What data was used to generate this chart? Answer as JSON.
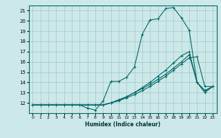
{
  "title": "",
  "xlabel": "Humidex (Indice chaleur)",
  "ylabel": "",
  "bg_color": "#cce8e8",
  "line_color": "#006666",
  "grid_color": "#aacccc",
  "xlim": [
    -0.5,
    23.5
  ],
  "ylim": [
    11.0,
    21.5
  ],
  "yticks": [
    12,
    13,
    14,
    15,
    16,
    17,
    18,
    19,
    20,
    21
  ],
  "xticks": [
    0,
    1,
    2,
    3,
    4,
    5,
    6,
    7,
    8,
    9,
    10,
    11,
    12,
    13,
    14,
    15,
    16,
    17,
    18,
    19,
    20,
    21,
    22,
    23
  ],
  "series": [
    {
      "x": [
        0,
        1,
        2,
        3,
        4,
        5,
        6,
        7,
        8,
        9,
        10,
        11,
        12,
        13,
        14,
        15,
        16,
        17,
        18,
        19,
        20,
        21,
        22,
        23
      ],
      "y": [
        11.8,
        11.8,
        11.8,
        11.8,
        11.8,
        11.8,
        11.8,
        11.5,
        11.3,
        12.2,
        14.1,
        14.1,
        14.5,
        15.5,
        18.7,
        20.1,
        20.2,
        21.2,
        21.3,
        20.3,
        19.1,
        14.0,
        13.0,
        13.6
      ]
    },
    {
      "x": [
        0,
        1,
        2,
        3,
        4,
        5,
        6,
        7,
        8,
        9,
        10,
        11,
        12,
        13,
        14,
        15,
        16,
        17,
        18,
        19,
        20,
        21,
        22,
        23
      ],
      "y": [
        11.8,
        11.8,
        11.8,
        11.8,
        11.8,
        11.8,
        11.8,
        11.8,
        11.8,
        11.8,
        12.0,
        12.2,
        12.5,
        12.8,
        13.2,
        13.6,
        14.1,
        14.6,
        15.2,
        15.8,
        16.4,
        16.5,
        13.6,
        13.6
      ]
    },
    {
      "x": [
        0,
        1,
        2,
        3,
        4,
        5,
        6,
        7,
        8,
        9,
        10,
        11,
        12,
        13,
        14,
        15,
        16,
        17,
        18,
        19,
        20,
        21,
        22,
        23
      ],
      "y": [
        11.8,
        11.8,
        11.8,
        11.8,
        11.8,
        11.8,
        11.8,
        11.8,
        11.8,
        11.8,
        12.0,
        12.3,
        12.6,
        13.0,
        13.4,
        13.8,
        14.3,
        14.8,
        15.4,
        16.0,
        16.7,
        14.0,
        13.2,
        13.6
      ]
    },
    {
      "x": [
        0,
        1,
        2,
        3,
        4,
        5,
        6,
        7,
        8,
        9,
        10,
        11,
        12,
        13,
        14,
        15,
        16,
        17,
        18,
        19,
        20,
        21,
        22,
        23
      ],
      "y": [
        11.8,
        11.8,
        11.8,
        11.8,
        11.8,
        11.8,
        11.8,
        11.8,
        11.8,
        11.8,
        12.0,
        12.3,
        12.6,
        13.0,
        13.5,
        14.0,
        14.6,
        15.2,
        15.9,
        16.6,
        17.0,
        14.0,
        13.2,
        13.6
      ]
    }
  ]
}
